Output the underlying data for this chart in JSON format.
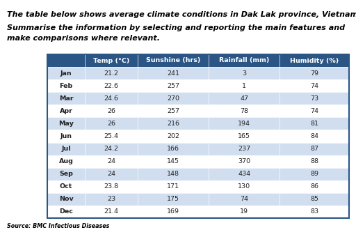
{
  "title_line1": "The table below shows average climate conditions in Dak Lak province, Vietnam.",
  "title_line2": "Summarise the information by selecting and reporting the main features and\nmake comparisons where relevant.",
  "source": "Source: BMC Infectious Diseases",
  "header_labels": [
    "",
    "Temp (°C)",
    "Sunshine (hrs)",
    "Rainfall (mm)",
    "Humidity (%)"
  ],
  "months": [
    "Jan",
    "Feb",
    "Mar",
    "Apr",
    "May",
    "Jun",
    "Jul",
    "Aug",
    "Sep",
    "Oct",
    "Nov",
    "Dec"
  ],
  "temp": [
    "21.2",
    "22.6",
    "24.6",
    "26",
    "26",
    "25.4",
    "24.2",
    "24",
    "24",
    "23.8",
    "23",
    "21.4"
  ],
  "sunshine": [
    "241",
    "257",
    "270",
    "257",
    "216",
    "202",
    "166",
    "145",
    "148",
    "171",
    "175",
    "169"
  ],
  "rainfall": [
    "3",
    "1",
    "47",
    "78",
    "194",
    "165",
    "237",
    "370",
    "434",
    "130",
    "74",
    "19"
  ],
  "humidity": [
    "79",
    "74",
    "73",
    "74",
    "81",
    "84",
    "87",
    "88",
    "89",
    "86",
    "85",
    "83"
  ],
  "header_bg": "#2A5585",
  "header_fg": "#FFFFFF",
  "row_bg_odd": "#D0DEF0",
  "row_bg_even": "#FFFFFF",
  "table_border_color": "#2A5585",
  "text_color": "#222222",
  "background": "#FFFFFF",
  "title1_fontsize": 8.0,
  "title2_fontsize": 8.0,
  "header_fontsize": 6.8,
  "cell_fontsize": 6.8,
  "source_fontsize": 5.8
}
